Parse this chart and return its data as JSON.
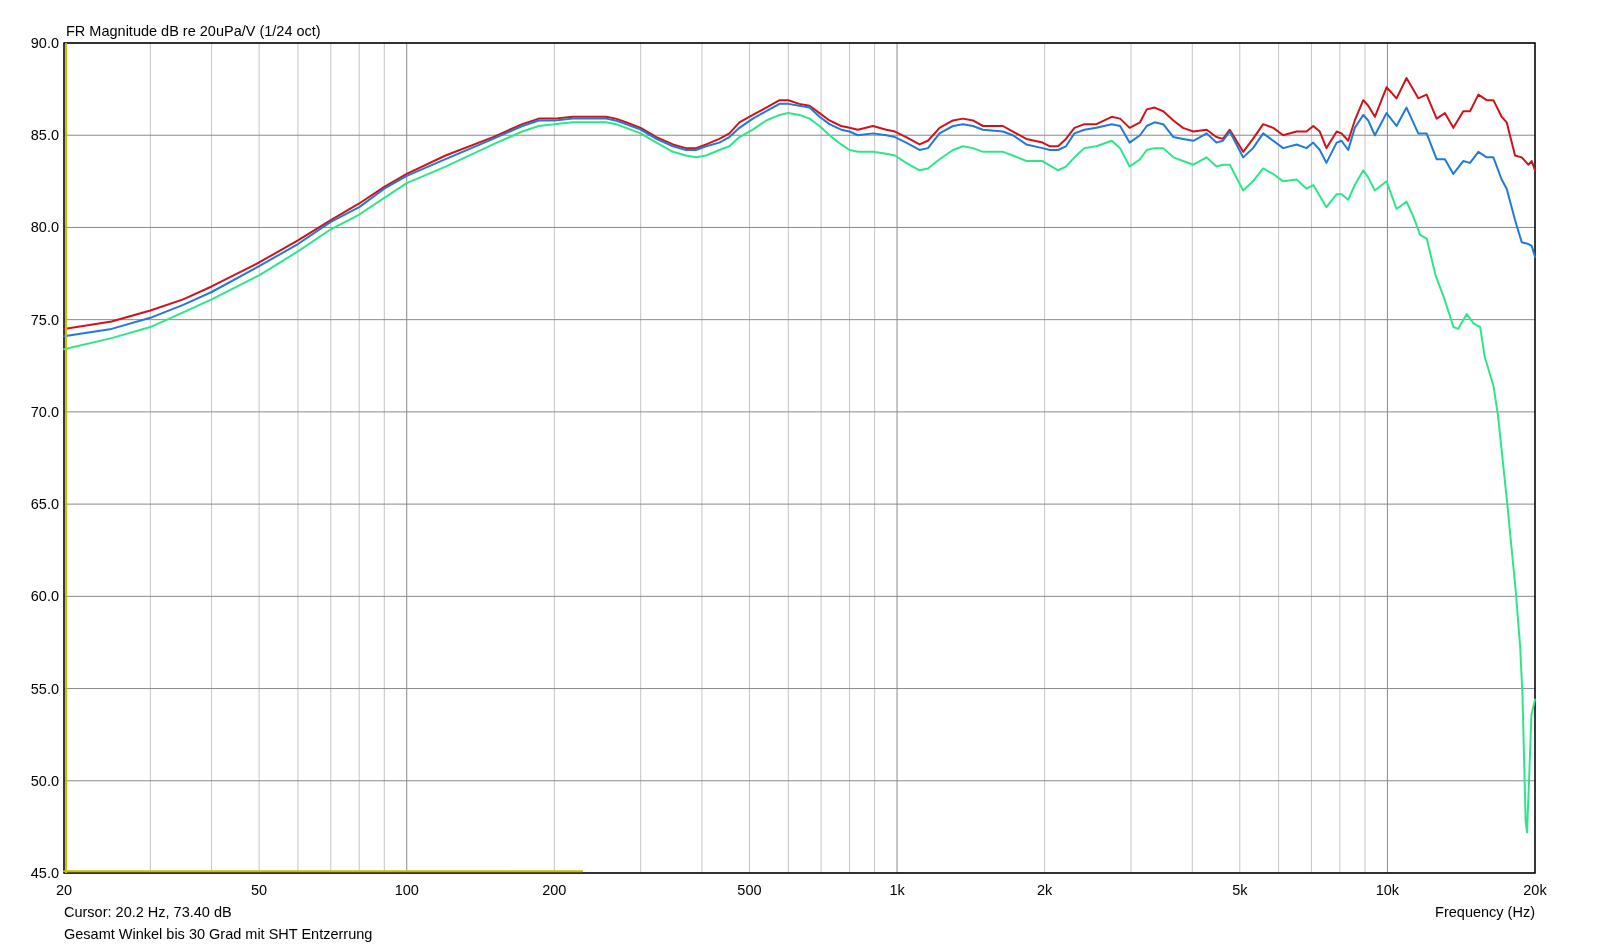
{
  "chart_data": {
    "type": "line",
    "ylabel": "FR Magnitude dB re 20uPa/V (1/24 oct)",
    "xlabel": "Frequency (Hz)",
    "annotations": [
      "Cursor: 20.2 Hz, 73.40 dB",
      "Gesamt Winkel bis 30 Grad mit SHT Entzerrung"
    ],
    "log": "x",
    "grid": true,
    "xlim": [
      20,
      20000
    ],
    "ylim": [
      45,
      90
    ],
    "xticks": [
      20,
      {
        "value": 30,
        "label": null
      },
      {
        "value": 40,
        "label": null
      },
      50,
      {
        "value": 60,
        "label": null
      },
      {
        "value": 70,
        "label": null
      },
      {
        "value": 80,
        "label": null
      },
      {
        "value": 90,
        "label": null
      },
      100,
      200,
      {
        "value": 300,
        "label": null
      },
      {
        "value": 400,
        "label": null
      },
      500,
      {
        "value": 600,
        "label": null
      },
      {
        "value": 700,
        "label": null
      },
      {
        "value": 800,
        "label": null
      },
      {
        "value": 900,
        "label": null
      },
      {
        "value": 1000,
        "label": "1k"
      },
      {
        "value": 2000,
        "label": "2k"
      },
      {
        "value": 3000,
        "label": null
      },
      {
        "value": 4000,
        "label": null
      },
      {
        "value": 5000,
        "label": "5k"
      },
      {
        "value": 6000,
        "label": null
      },
      {
        "value": 7000,
        "label": null
      },
      {
        "value": 8000,
        "label": null
      },
      {
        "value": 9000,
        "label": null
      },
      {
        "value": 10000,
        "label": "10k"
      },
      {
        "value": 20000,
        "label": "20k"
      }
    ],
    "yticks": [
      {
        "value": 45,
        "label": "45.0"
      },
      {
        "value": 50,
        "label": "50.0"
      },
      {
        "value": 55,
        "label": "55.0"
      },
      {
        "value": 60,
        "label": "60.0"
      },
      {
        "value": 65,
        "label": "65.0"
      },
      {
        "value": 70,
        "label": "70.0"
      },
      {
        "value": 75,
        "label": "75.0"
      },
      {
        "value": 80,
        "label": "80.0"
      },
      {
        "value": 85,
        "label": "85.0"
      },
      {
        "value": 90,
        "label": "90.0"
      }
    ],
    "ref_lines": [
      {
        "axis": "x",
        "value": 20.2,
        "color": "#c0c000"
      }
    ],
    "series": [
      {
        "color": "#d2121a",
        "x": [
          20,
          25,
          30,
          35,
          40,
          50,
          60,
          70,
          80,
          90,
          100,
          120,
          150,
          172,
          186,
          200,
          218,
          236,
          255,
          267,
          280,
          300,
          323,
          349,
          371,
          389,
          408,
          434,
          455,
          477,
          508,
          541,
          576,
          600,
          632,
          663,
          695,
          728,
          769,
          800,
          832,
          893,
          951,
          990,
          1044,
          1111,
          1156,
          1221,
          1300,
          1363,
          1428,
          1497,
          1644,
          1723,
          1835,
          1980,
          2050,
          2130,
          2210,
          2300,
          2410,
          2550,
          2740,
          2850,
          2980,
          3130,
          3230,
          3350,
          3490,
          3660,
          3830,
          4020,
          4280,
          4480,
          4620,
          4770,
          5080,
          5320,
          5580,
          5850,
          6130,
          6530,
          6840,
          7060,
          7280,
          7510,
          7880,
          8060,
          8320,
          8580,
          8930,
          9140,
          9430,
          9960,
          10440,
          10940,
          11560,
          12020,
          12600,
          13100,
          13630,
          14280,
          14740,
          15330,
          15940,
          16450,
          17100,
          17510,
          18210,
          18790,
          19390,
          19690,
          20000
        ],
        "values": [
          74.5,
          74.9,
          75.5,
          76.1,
          76.8,
          78.1,
          79.3,
          80.4,
          81.3,
          82.2,
          82.9,
          83.9,
          84.9,
          85.6,
          85.9,
          85.9,
          86.0,
          86.0,
          86.0,
          85.9,
          85.7,
          85.4,
          84.9,
          84.5,
          84.3,
          84.3,
          84.5,
          84.8,
          85.1,
          85.7,
          86.1,
          86.5,
          86.9,
          86.9,
          86.7,
          86.6,
          86.2,
          85.8,
          85.5,
          85.4,
          85.3,
          85.5,
          85.3,
          85.2,
          84.9,
          84.5,
          84.7,
          85.4,
          85.8,
          85.9,
          85.8,
          85.5,
          85.5,
          85.2,
          84.8,
          84.6,
          84.4,
          84.4,
          84.8,
          85.4,
          85.6,
          85.6,
          86.0,
          85.9,
          85.4,
          85.7,
          86.4,
          86.5,
          86.3,
          85.8,
          85.4,
          85.2,
          85.3,
          84.9,
          84.8,
          85.3,
          84.1,
          84.8,
          85.6,
          85.4,
          85.0,
          85.2,
          85.2,
          85.5,
          85.2,
          84.3,
          85.2,
          85.1,
          84.7,
          85.8,
          86.9,
          86.6,
          86.0,
          87.6,
          87.0,
          88.1,
          87.0,
          87.2,
          85.9,
          86.2,
          85.4,
          86.3,
          86.3,
          87.2,
          86.9,
          86.9,
          86.0,
          85.7,
          83.9,
          83.8,
          83.4,
          83.6,
          83.1
        ]
      },
      {
        "color": "#1f7ad8",
        "x": [
          20,
          25,
          30,
          35,
          40,
          50,
          60,
          70,
          80,
          90,
          100,
          120,
          150,
          172,
          186,
          200,
          218,
          236,
          255,
          267,
          280,
          300,
          323,
          349,
          371,
          389,
          408,
          434,
          455,
          477,
          508,
          541,
          576,
          600,
          632,
          663,
          695,
          728,
          769,
          800,
          832,
          893,
          951,
          990,
          1044,
          1111,
          1156,
          1221,
          1300,
          1363,
          1428,
          1497,
          1644,
          1723,
          1835,
          1980,
          2050,
          2130,
          2210,
          2300,
          2410,
          2550,
          2740,
          2850,
          2980,
          3130,
          3230,
          3350,
          3490,
          3660,
          3830,
          4020,
          4280,
          4480,
          4620,
          4770,
          5080,
          5320,
          5580,
          5850,
          6130,
          6530,
          6840,
          7060,
          7280,
          7510,
          7880,
          8060,
          8320,
          8580,
          8930,
          9140,
          9430,
          9960,
          10440,
          10940,
          11560,
          12020,
          12600,
          13100,
          13630,
          14280,
          14740,
          15330,
          15940,
          16450,
          17100,
          17510,
          18210,
          18790,
          19390,
          19690,
          20000
        ],
        "values": [
          74.1,
          74.5,
          75.1,
          75.8,
          76.5,
          77.9,
          79.1,
          80.3,
          81.1,
          82.1,
          82.8,
          83.7,
          84.8,
          85.5,
          85.8,
          85.8,
          85.9,
          85.9,
          85.9,
          85.8,
          85.6,
          85.3,
          84.8,
          84.4,
          84.2,
          84.2,
          84.4,
          84.6,
          84.9,
          85.4,
          85.9,
          86.3,
          86.7,
          86.7,
          86.6,
          86.5,
          86.0,
          85.6,
          85.3,
          85.2,
          85.0,
          85.1,
          85.0,
          84.9,
          84.6,
          84.2,
          84.3,
          85.1,
          85.5,
          85.6,
          85.5,
          85.3,
          85.2,
          85.0,
          84.5,
          84.3,
          84.2,
          84.2,
          84.4,
          85.1,
          85.3,
          85.4,
          85.6,
          85.5,
          84.6,
          85.0,
          85.5,
          85.7,
          85.6,
          84.9,
          84.8,
          84.7,
          85.1,
          84.6,
          84.7,
          85.2,
          83.8,
          84.3,
          85.1,
          84.7,
          84.3,
          84.5,
          84.3,
          84.6,
          84.2,
          83.5,
          84.6,
          84.7,
          84.2,
          85.4,
          86.1,
          85.8,
          85.0,
          86.2,
          85.5,
          86.5,
          85.1,
          85.1,
          83.7,
          83.7,
          82.9,
          83.6,
          83.5,
          84.1,
          83.8,
          83.8,
          82.6,
          82.1,
          80.4,
          79.2,
          79.1,
          79.0,
          78.4
        ]
      },
      {
        "color": "#2ee68a",
        "x": [
          20,
          25,
          30,
          35,
          40,
          50,
          60,
          70,
          80,
          90,
          100,
          120,
          150,
          172,
          186,
          200,
          218,
          236,
          255,
          267,
          280,
          300,
          323,
          349,
          371,
          389,
          408,
          434,
          455,
          477,
          508,
          541,
          576,
          600,
          632,
          663,
          695,
          728,
          769,
          800,
          832,
          893,
          951,
          990,
          1044,
          1111,
          1156,
          1221,
          1300,
          1363,
          1428,
          1497,
          1644,
          1723,
          1835,
          1980,
          2130,
          2210,
          2300,
          2410,
          2550,
          2740,
          2850,
          2980,
          3130,
          3230,
          3350,
          3490,
          3660,
          3830,
          4020,
          4280,
          4480,
          4620,
          4770,
          5080,
          5320,
          5580,
          5850,
          6130,
          6530,
          6840,
          7060,
          7280,
          7510,
          7880,
          8060,
          8320,
          8580,
          8930,
          9140,
          9430,
          9960,
          10440,
          10940,
          11290,
          11660,
          12030,
          12540,
          13080,
          13640,
          13930,
          14520,
          14980,
          15460,
          15790,
          16460,
          16810,
          17530,
          18270,
          18660,
          18860,
          19140,
          19260,
          19450,
          19670,
          20000
        ],
        "values": [
          73.4,
          74.0,
          74.6,
          75.4,
          76.1,
          77.4,
          78.7,
          79.9,
          80.7,
          81.6,
          82.4,
          83.3,
          84.5,
          85.2,
          85.5,
          85.6,
          85.7,
          85.7,
          85.7,
          85.6,
          85.4,
          85.1,
          84.6,
          84.1,
          83.9,
          83.8,
          83.9,
          84.2,
          84.4,
          84.9,
          85.3,
          85.8,
          86.1,
          86.2,
          86.1,
          85.9,
          85.5,
          85.0,
          84.5,
          84.2,
          84.1,
          84.1,
          84.0,
          83.9,
          83.5,
          83.1,
          83.2,
          83.7,
          84.2,
          84.4,
          84.3,
          84.1,
          84.1,
          83.9,
          83.6,
          83.6,
          83.1,
          83.3,
          83.8,
          84.3,
          84.4,
          84.7,
          84.3,
          83.3,
          83.7,
          84.2,
          84.3,
          84.3,
          83.8,
          83.6,
          83.4,
          83.8,
          83.3,
          83.4,
          83.4,
          82.0,
          82.5,
          83.2,
          82.9,
          82.5,
          82.6,
          82.1,
          82.3,
          81.7,
          81.1,
          81.8,
          81.8,
          81.5,
          82.3,
          83.1,
          82.7,
          82.0,
          82.5,
          81.0,
          81.4,
          80.6,
          79.6,
          79.4,
          77.4,
          76.1,
          74.6,
          74.5,
          75.3,
          74.8,
          74.6,
          73.0,
          71.4,
          69.8,
          65.2,
          60.3,
          57.2,
          54.6,
          47.8,
          47.2,
          50.0,
          53.6,
          54.4
        ]
      },
      {
        "color": "#c0c000",
        "x": [
          20,
          228
        ],
        "values": [
          45.1,
          45.1
        ]
      }
    ]
  }
}
